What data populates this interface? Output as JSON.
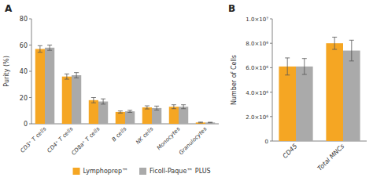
{
  "chart_data": [
    {
      "type": "bar",
      "title": "A",
      "y_label": "Purity (%)",
      "categories": [
        "CD3⁺ T cells",
        "CD4⁺ T cells",
        "CD8a⁺ T cells",
        "B cells",
        "NK cells",
        "Monocytes",
        "Granulocytes"
      ],
      "series": [
        {
          "name": "Lymphoprep™",
          "color": "#F5A623",
          "values": [
            57,
            36,
            18,
            9,
            12.5,
            13,
            1
          ],
          "errors": [
            2.5,
            2,
            2,
            0.8,
            1.2,
            1.5,
            0.3
          ]
        },
        {
          "name": "Ficoll-Paque™ PLUS",
          "color": "#AAAAAA",
          "values": [
            58,
            37,
            17,
            9.5,
            12,
            13,
            1
          ],
          "errors": [
            2,
            2,
            2,
            0.8,
            1.5,
            1.5,
            0.2
          ]
        }
      ],
      "ylim": [
        0,
        80
      ],
      "yticks": [
        0,
        20,
        40,
        60,
        80
      ],
      "legend": "bottom"
    },
    {
      "type": "bar",
      "title": "B",
      "y_label": "Number of Cells",
      "categories": [
        "CD45",
        "Total MNCs"
      ],
      "series": [
        {
          "name": "Lymphoprep™",
          "color": "#F5A623",
          "values": [
            6100000,
            8000000
          ],
          "errors": [
            700000,
            500000
          ]
        },
        {
          "name": "Ficoll-Paque™ PLUS",
          "color": "#AAAAAA",
          "values": [
            6100000,
            7400000
          ],
          "errors": [
            650000,
            850000
          ]
        }
      ],
      "ylim": [
        0,
        10000000
      ],
      "yticks": [
        0,
        {
          "value": 2000000,
          "label": "2.0×10⁶"
        },
        {
          "value": 4000000,
          "label": "4.0×10⁶"
        },
        {
          "value": 6000000,
          "label": "6.0×10⁶"
        },
        {
          "value": 8000000,
          "label": "8.0×10⁶"
        },
        {
          "value": 10000000,
          "label": "1.0×10⁷"
        }
      ]
    }
  ]
}
